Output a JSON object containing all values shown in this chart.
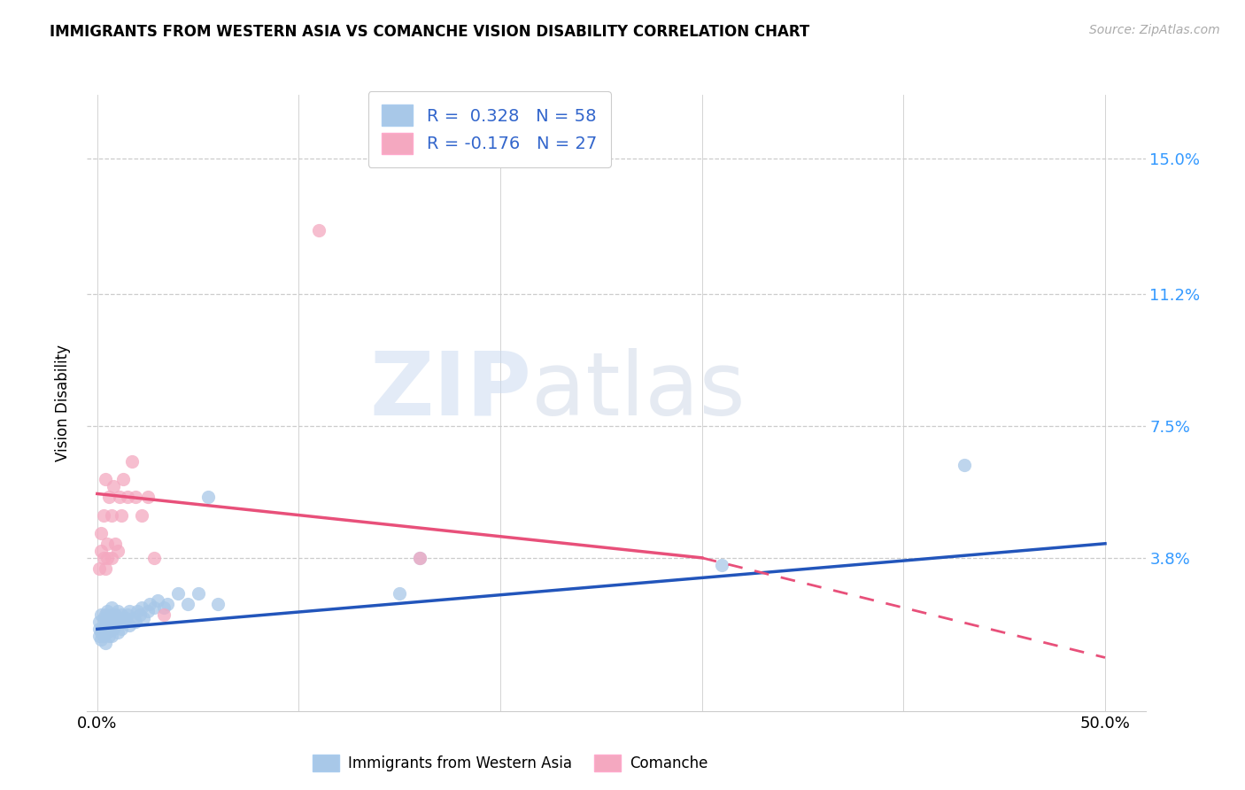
{
  "title": "IMMIGRANTS FROM WESTERN ASIA VS COMANCHE VISION DISABILITY CORRELATION CHART",
  "source": "Source: ZipAtlas.com",
  "ylabel": "Vision Disability",
  "yticks": [
    0.0,
    0.038,
    0.075,
    0.112,
    0.15
  ],
  "ytick_labels": [
    "",
    "3.8%",
    "7.5%",
    "11.2%",
    "15.0%"
  ],
  "xticks": [
    0.0,
    0.1,
    0.2,
    0.3,
    0.4,
    0.5
  ],
  "xlim": [
    -0.005,
    0.52
  ],
  "ylim": [
    -0.005,
    0.168
  ],
  "blue_R": 0.328,
  "blue_N": 58,
  "pink_R": -0.176,
  "pink_N": 27,
  "blue_color": "#a8c8e8",
  "pink_color": "#f4a8c0",
  "blue_line_color": "#2255bb",
  "pink_line_color": "#e8507a",
  "watermark_zip": "ZIP",
  "watermark_atlas": "atlas",
  "background_color": "#ffffff",
  "legend_blue_label": "Immigrants from Western Asia",
  "legend_pink_label": "Comanche",
  "blue_scatter_x": [
    0.001,
    0.001,
    0.001,
    0.002,
    0.002,
    0.002,
    0.003,
    0.003,
    0.003,
    0.004,
    0.004,
    0.004,
    0.005,
    0.005,
    0.005,
    0.006,
    0.006,
    0.006,
    0.007,
    0.007,
    0.007,
    0.007,
    0.008,
    0.008,
    0.009,
    0.009,
    0.01,
    0.01,
    0.01,
    0.011,
    0.012,
    0.012,
    0.013,
    0.014,
    0.015,
    0.016,
    0.016,
    0.018,
    0.019,
    0.02,
    0.021,
    0.022,
    0.023,
    0.025,
    0.026,
    0.028,
    0.03,
    0.033,
    0.035,
    0.04,
    0.045,
    0.05,
    0.055,
    0.06,
    0.15,
    0.16,
    0.31,
    0.43
  ],
  "blue_scatter_y": [
    0.018,
    0.016,
    0.02,
    0.015,
    0.017,
    0.022,
    0.018,
    0.021,
    0.016,
    0.019,
    0.014,
    0.022,
    0.017,
    0.02,
    0.023,
    0.018,
    0.021,
    0.016,
    0.019,
    0.022,
    0.016,
    0.024,
    0.018,
    0.02,
    0.019,
    0.022,
    0.017,
    0.02,
    0.023,
    0.021,
    0.018,
    0.022,
    0.02,
    0.021,
    0.022,
    0.019,
    0.023,
    0.021,
    0.02,
    0.023,
    0.022,
    0.024,
    0.021,
    0.023,
    0.025,
    0.024,
    0.026,
    0.024,
    0.025,
    0.028,
    0.025,
    0.028,
    0.055,
    0.025,
    0.028,
    0.038,
    0.036,
    0.064
  ],
  "pink_scatter_x": [
    0.001,
    0.002,
    0.002,
    0.003,
    0.003,
    0.004,
    0.004,
    0.005,
    0.005,
    0.006,
    0.007,
    0.007,
    0.008,
    0.009,
    0.01,
    0.011,
    0.012,
    0.013,
    0.015,
    0.017,
    0.019,
    0.022,
    0.025,
    0.028,
    0.033,
    0.11,
    0.16
  ],
  "pink_scatter_y": [
    0.035,
    0.04,
    0.045,
    0.038,
    0.05,
    0.035,
    0.06,
    0.042,
    0.038,
    0.055,
    0.05,
    0.038,
    0.058,
    0.042,
    0.04,
    0.055,
    0.05,
    0.06,
    0.055,
    0.065,
    0.055,
    0.05,
    0.055,
    0.038,
    0.022,
    0.13,
    0.038
  ],
  "blue_trendline": [
    0.0,
    0.018,
    0.5,
    0.042
  ],
  "pink_solid_trendline": [
    0.0,
    0.056,
    0.3,
    0.038
  ],
  "pink_dashed_trendline": [
    0.3,
    0.038,
    0.5,
    0.01
  ]
}
